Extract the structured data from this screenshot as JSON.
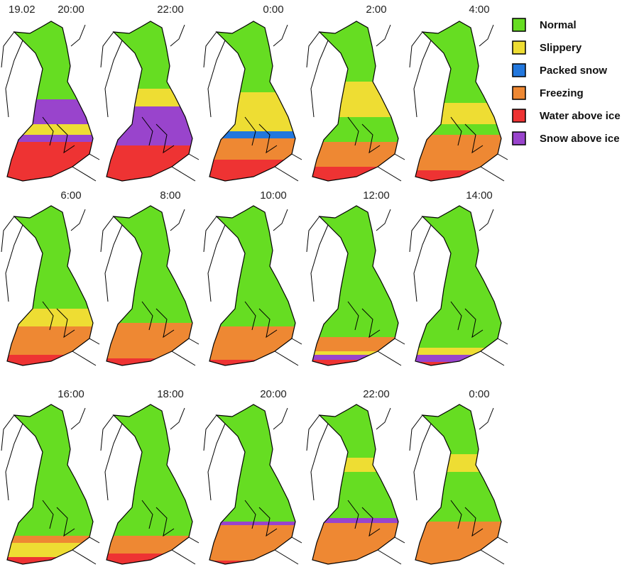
{
  "date": "19.02",
  "panels": [
    "20:00",
    "22:00",
    "0:00",
    "2:00",
    "4:00",
    "6:00",
    "8:00",
    "10:00",
    "12:00",
    "14:00",
    "16:00",
    "18:00",
    "20:00",
    "22:00",
    "0:00"
  ],
  "legend": [
    {
      "label": "Normal",
      "color": "#66dd22"
    },
    {
      "label": "Slippery",
      "color": "#eedd33"
    },
    {
      "label": "Packed snow",
      "color": "#2277dd"
    },
    {
      "label": "Freezing",
      "color": "#ee8833"
    },
    {
      "label": "Water above ice",
      "color": "#ee3333"
    },
    {
      "label": "Snow above ice",
      "color": "#9944cc"
    }
  ]
}
